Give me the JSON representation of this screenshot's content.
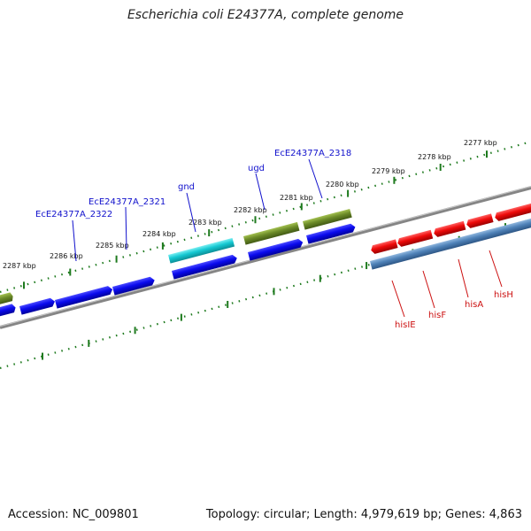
{
  "title": "Escherichia coli E24377A, complete genome",
  "footer": {
    "accession": "Accession: NC_009801",
    "topology": "Topology: circular; Length: 4,979,619 bp; Genes: 4,863"
  },
  "colors": {
    "blue_gene": "#0a0aee",
    "cyan_gene": "#14c8d2",
    "olive_gene": "#6b8a28",
    "red_gene": "#ee0a0a",
    "steel_gene": "#4f82b8",
    "backbone": "#888888",
    "tick": "#1e7a1e",
    "blue_label": "#1010cc",
    "red_label": "#cc1010"
  },
  "scale_labels": [
    "2287 kbp",
    "2286 kbp",
    "2285 kbp",
    "2284 kbp",
    "2283 kbp",
    "2282 kbp",
    "2281 kbp",
    "2280 kbp",
    "2279 kbp",
    "2278 kbp",
    "2277 kbp"
  ],
  "gene_labels_top": [
    "EcE24377A_2322",
    "EcE24377A_2321",
    "gnd",
    "ugd",
    "EcE24377A_2318"
  ],
  "gene_labels_bottom": [
    "hisIE",
    "hisF",
    "hisA",
    "hisH"
  ]
}
